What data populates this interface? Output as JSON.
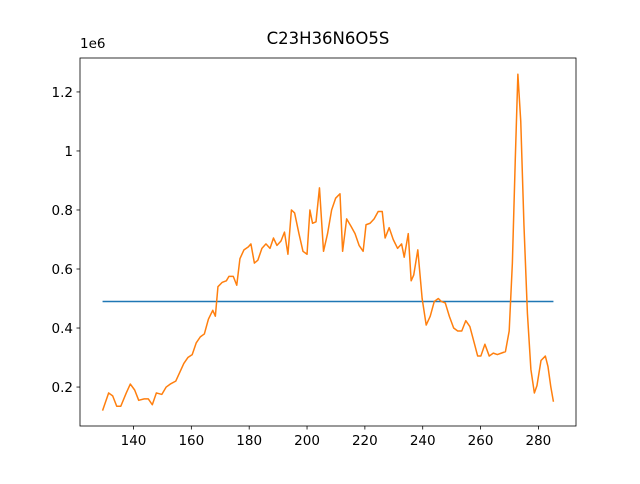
{
  "chart_data": {
    "type": "line",
    "title": "C23H36N6O5S",
    "y_offset_label": "1e6",
    "xlim": [
      121.5,
      293
    ],
    "ylim": [
      0.068,
      1.315
    ],
    "xticks": [
      140,
      160,
      180,
      200,
      220,
      240,
      260,
      280
    ],
    "yticks": [
      0.2,
      0.4,
      0.6,
      0.8,
      1.0,
      1.2
    ],
    "grid": false,
    "series": [
      {
        "color": "#1f77b4",
        "x": [
          129.3,
          285.2
        ],
        "values": [
          0.49,
          0.49
        ]
      },
      {
        "color": "#ff7f0e",
        "x": [
          129.3,
          131.4,
          132.8,
          134.2,
          135.6,
          137.5,
          138.9,
          140.4,
          141.8,
          143.7,
          145.1,
          146.5,
          147.9,
          149.8,
          151.3,
          152.7,
          154.6,
          156.0,
          157.4,
          158.8,
          160.3,
          161.7,
          163.1,
          164.5,
          165.9,
          167.4,
          168.3,
          169.2,
          170.7,
          172.1,
          173.0,
          174.5,
          175.7,
          176.8,
          178.2,
          179.7,
          180.6,
          181.8,
          183.0,
          184.4,
          185.8,
          187.2,
          188.4,
          189.6,
          191.0,
          192.2,
          193.4,
          194.6,
          195.7,
          197.2,
          198.6,
          200.0,
          201.0,
          201.9,
          203.1,
          204.3,
          205.7,
          207.1,
          208.5,
          209.9,
          211.4,
          212.3,
          213.7,
          215.2,
          216.6,
          218.0,
          219.4,
          220.4,
          221.8,
          223.2,
          224.6,
          226.0,
          227.0,
          228.4,
          229.8,
          231.3,
          232.7,
          233.6,
          235.0,
          236.0,
          236.9,
          238.3,
          239.8,
          241.2,
          242.6,
          244.0,
          245.4,
          246.4,
          247.8,
          249.2,
          250.7,
          252.1,
          253.5,
          254.9,
          256.3,
          257.8,
          259.0,
          260.1,
          261.5,
          263.0,
          264.4,
          265.8,
          267.2,
          268.6,
          269.9,
          271.0,
          272.0,
          272.9,
          273.9,
          275.0,
          276.2,
          277.4,
          278.6,
          279.5,
          280.9,
          282.4,
          283.3,
          284.3,
          285.2
        ],
        "values": [
          0.12,
          0.18,
          0.17,
          0.135,
          0.135,
          0.18,
          0.21,
          0.19,
          0.155,
          0.16,
          0.16,
          0.14,
          0.18,
          0.175,
          0.2,
          0.21,
          0.22,
          0.25,
          0.28,
          0.3,
          0.31,
          0.35,
          0.37,
          0.38,
          0.43,
          0.46,
          0.44,
          0.54,
          0.555,
          0.56,
          0.575,
          0.575,
          0.545,
          0.635,
          0.665,
          0.675,
          0.685,
          0.62,
          0.63,
          0.67,
          0.685,
          0.67,
          0.705,
          0.68,
          0.695,
          0.725,
          0.65,
          0.8,
          0.79,
          0.72,
          0.66,
          0.65,
          0.8,
          0.755,
          0.76,
          0.875,
          0.66,
          0.72,
          0.8,
          0.84,
          0.855,
          0.66,
          0.77,
          0.745,
          0.72,
          0.68,
          0.66,
          0.75,
          0.755,
          0.77,
          0.795,
          0.795,
          0.705,
          0.74,
          0.7,
          0.67,
          0.685,
          0.64,
          0.72,
          0.56,
          0.58,
          0.665,
          0.5,
          0.41,
          0.44,
          0.49,
          0.5,
          0.49,
          0.485,
          0.44,
          0.4,
          0.39,
          0.39,
          0.425,
          0.405,
          0.35,
          0.305,
          0.305,
          0.345,
          0.305,
          0.315,
          0.31,
          0.315,
          0.32,
          0.39,
          0.62,
          0.97,
          1.26,
          1.1,
          0.75,
          0.45,
          0.26,
          0.18,
          0.205,
          0.29,
          0.305,
          0.27,
          0.2,
          0.15
        ]
      }
    ]
  }
}
